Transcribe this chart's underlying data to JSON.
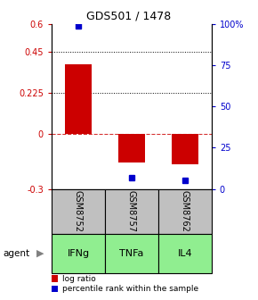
{
  "title": "GDS501 / 1478",
  "samples": [
    "GSM8752",
    "GSM8757",
    "GSM8762"
  ],
  "agents": [
    "IFNg",
    "TNFa",
    "IL4"
  ],
  "log_ratios": [
    0.38,
    -0.155,
    -0.165
  ],
  "percentile_ranks": [
    99,
    7,
    5
  ],
  "ylim_left": [
    -0.3,
    0.6
  ],
  "ylim_right": [
    0,
    100
  ],
  "yticks_left": [
    -0.3,
    0,
    0.225,
    0.45,
    0.6
  ],
  "yticks_right": [
    0,
    25,
    50,
    75,
    100
  ],
  "ytick_labels_left": [
    "-0.3",
    "0",
    "0.225",
    "0.45",
    "0.6"
  ],
  "ytick_labels_right": [
    "0",
    "25",
    "50",
    "75",
    "100%"
  ],
  "hlines": [
    0.225,
    0.45
  ],
  "zero_line": 0,
  "bar_color": "#cc0000",
  "dot_color": "#0000cc",
  "agent_color": "#90ee90",
  "sample_bg_color": "#c0c0c0",
  "legend_log_label": "log ratio",
  "legend_pct_label": "percentile rank within the sample",
  "bar_width": 0.5,
  "title_fontsize": 9,
  "tick_fontsize": 7,
  "sample_fontsize": 7,
  "agent_fontsize": 8,
  "legend_fontsize": 6.5
}
